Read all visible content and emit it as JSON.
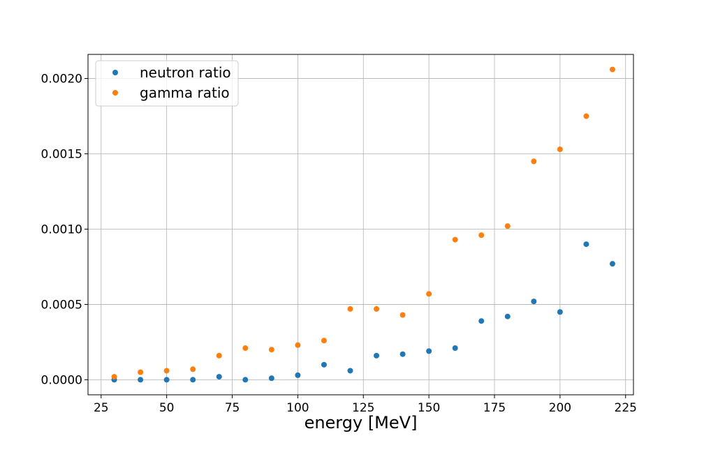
{
  "chart_data": {
    "type": "scatter",
    "title": "",
    "xlabel": "energy [MeV]",
    "ylabel": "",
    "xlim": [
      20,
      228
    ],
    "ylim": [
      -0.0001,
      0.00216
    ],
    "x_ticks": [
      25,
      50,
      75,
      100,
      125,
      150,
      175,
      200,
      225
    ],
    "x_tick_labels": [
      "25",
      "50",
      "75",
      "100",
      "125",
      "150",
      "175",
      "200",
      "225"
    ],
    "y_ticks": [
      0.0,
      0.0005,
      0.001,
      0.0015,
      0.002
    ],
    "y_tick_labels": [
      "0.0000",
      "0.0005",
      "0.0010",
      "0.0015",
      "0.0020"
    ],
    "grid": true,
    "legend_position": "top-left",
    "series": [
      {
        "name": "neutron ratio",
        "color": "#1f77b4",
        "x": [
          30,
          40,
          50,
          60,
          70,
          80,
          90,
          100,
          110,
          120,
          130,
          140,
          150,
          160,
          170,
          180,
          190,
          200,
          210,
          220
        ],
        "y": [
          0.0,
          0.0,
          0.0,
          0.0,
          2e-05,
          0.0,
          1e-05,
          3e-05,
          0.0001,
          6e-05,
          0.00016,
          0.00017,
          0.00019,
          0.00021,
          0.00039,
          0.00042,
          0.00052,
          0.00045,
          0.0009,
          0.00077
        ]
      },
      {
        "name": "gamma ratio",
        "color": "#ff7f0e",
        "x": [
          30,
          40,
          50,
          60,
          70,
          80,
          90,
          100,
          110,
          120,
          130,
          140,
          150,
          160,
          170,
          180,
          190,
          200,
          210,
          220
        ],
        "y": [
          2e-05,
          5e-05,
          6e-05,
          7e-05,
          0.00016,
          0.00021,
          0.0002,
          0.00023,
          0.00026,
          0.00047,
          0.00047,
          0.00043,
          0.00057,
          0.00093,
          0.00096,
          0.00102,
          0.00145,
          0.00153,
          0.00175,
          0.00206
        ]
      }
    ]
  }
}
